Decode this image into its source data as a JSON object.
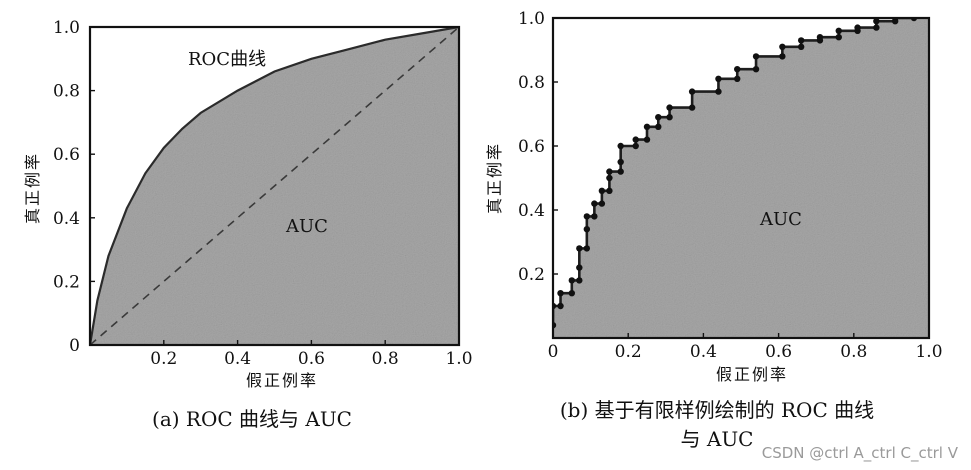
{
  "chart_data": [
    {
      "type": "area",
      "title": "",
      "caption": "(a) ROC 曲线与 AUC",
      "xlabel": "假正例率",
      "ylabel": "真正例率",
      "xlim": [
        0,
        1
      ],
      "ylim": [
        0,
        1
      ],
      "x_ticks": [
        "0.2",
        "0.4",
        "0.6",
        "0.8",
        "1.0"
      ],
      "y_ticks": [
        "0",
        "0.2",
        "0.4",
        "0.6",
        "0.8",
        "1.0"
      ],
      "annotations": {
        "curve_label": "ROC曲线",
        "area_label": "AUC"
      },
      "series": [
        {
          "kind": "curve",
          "x": [
            0,
            0.02,
            0.05,
            0.1,
            0.15,
            0.2,
            0.25,
            0.3,
            0.4,
            0.5,
            0.6,
            0.7,
            0.8,
            0.9,
            1.0
          ],
          "y": [
            0,
            0.14,
            0.28,
            0.43,
            0.54,
            0.62,
            0.68,
            0.73,
            0.8,
            0.86,
            0.9,
            0.93,
            0.96,
            0.98,
            1.0
          ]
        },
        {
          "kind": "diagonal-dashed",
          "x": [
            0,
            1
          ],
          "y": [
            0,
            1
          ]
        }
      ],
      "grid": false,
      "fill_color": "#a7a7a7",
      "line_color": "#2b2b2b"
    },
    {
      "type": "area",
      "title": "",
      "caption_lines": [
        "(b) 基于有限样例绘制的 ROC 曲线",
        "与 AUC"
      ],
      "xlabel": "假正例率",
      "ylabel": "真正例率",
      "xlim": [
        0,
        1
      ],
      "ylim": [
        0,
        1
      ],
      "x_ticks": [
        "0",
        "0.2",
        "0.4",
        "0.6",
        "0.8",
        "1.0"
      ],
      "y_ticks": [
        "0.2",
        "0.4",
        "0.6",
        "0.8",
        "1.0"
      ],
      "annotations": {
        "area_label": "AUC"
      },
      "series": [
        {
          "kind": "step",
          "points": [
            [
              0.0,
              0.04
            ],
            [
              0.0,
              0.1
            ],
            [
              0.02,
              0.1
            ],
            [
              0.02,
              0.14
            ],
            [
              0.05,
              0.14
            ],
            [
              0.05,
              0.18
            ],
            [
              0.07,
              0.18
            ],
            [
              0.07,
              0.22
            ],
            [
              0.07,
              0.28
            ],
            [
              0.09,
              0.28
            ],
            [
              0.09,
              0.34
            ],
            [
              0.09,
              0.38
            ],
            [
              0.11,
              0.38
            ],
            [
              0.11,
              0.42
            ],
            [
              0.13,
              0.42
            ],
            [
              0.13,
              0.46
            ],
            [
              0.15,
              0.46
            ],
            [
              0.15,
              0.5
            ],
            [
              0.15,
              0.52
            ],
            [
              0.18,
              0.52
            ],
            [
              0.18,
              0.55
            ],
            [
              0.18,
              0.6
            ],
            [
              0.22,
              0.6
            ],
            [
              0.22,
              0.62
            ],
            [
              0.25,
              0.62
            ],
            [
              0.25,
              0.66
            ],
            [
              0.28,
              0.66
            ],
            [
              0.28,
              0.69
            ],
            [
              0.31,
              0.69
            ],
            [
              0.31,
              0.72
            ],
            [
              0.37,
              0.72
            ],
            [
              0.37,
              0.77
            ],
            [
              0.44,
              0.77
            ],
            [
              0.44,
              0.81
            ],
            [
              0.49,
              0.81
            ],
            [
              0.49,
              0.84
            ],
            [
              0.54,
              0.84
            ],
            [
              0.54,
              0.88
            ],
            [
              0.61,
              0.88
            ],
            [
              0.61,
              0.91
            ],
            [
              0.66,
              0.91
            ],
            [
              0.66,
              0.93
            ],
            [
              0.71,
              0.93
            ],
            [
              0.71,
              0.94
            ],
            [
              0.76,
              0.94
            ],
            [
              0.76,
              0.96
            ],
            [
              0.81,
              0.96
            ],
            [
              0.81,
              0.97
            ],
            [
              0.86,
              0.97
            ],
            [
              0.86,
              0.99
            ],
            [
              0.91,
              0.99
            ],
            [
              0.91,
              1.0
            ],
            [
              0.96,
              1.0
            ]
          ]
        }
      ],
      "grid": false,
      "fill_color": "#a7a7a7",
      "line_color": "#1e1e1e"
    }
  ],
  "watermark": "CSDN @ctrl A_ctrl C_ctrl V"
}
